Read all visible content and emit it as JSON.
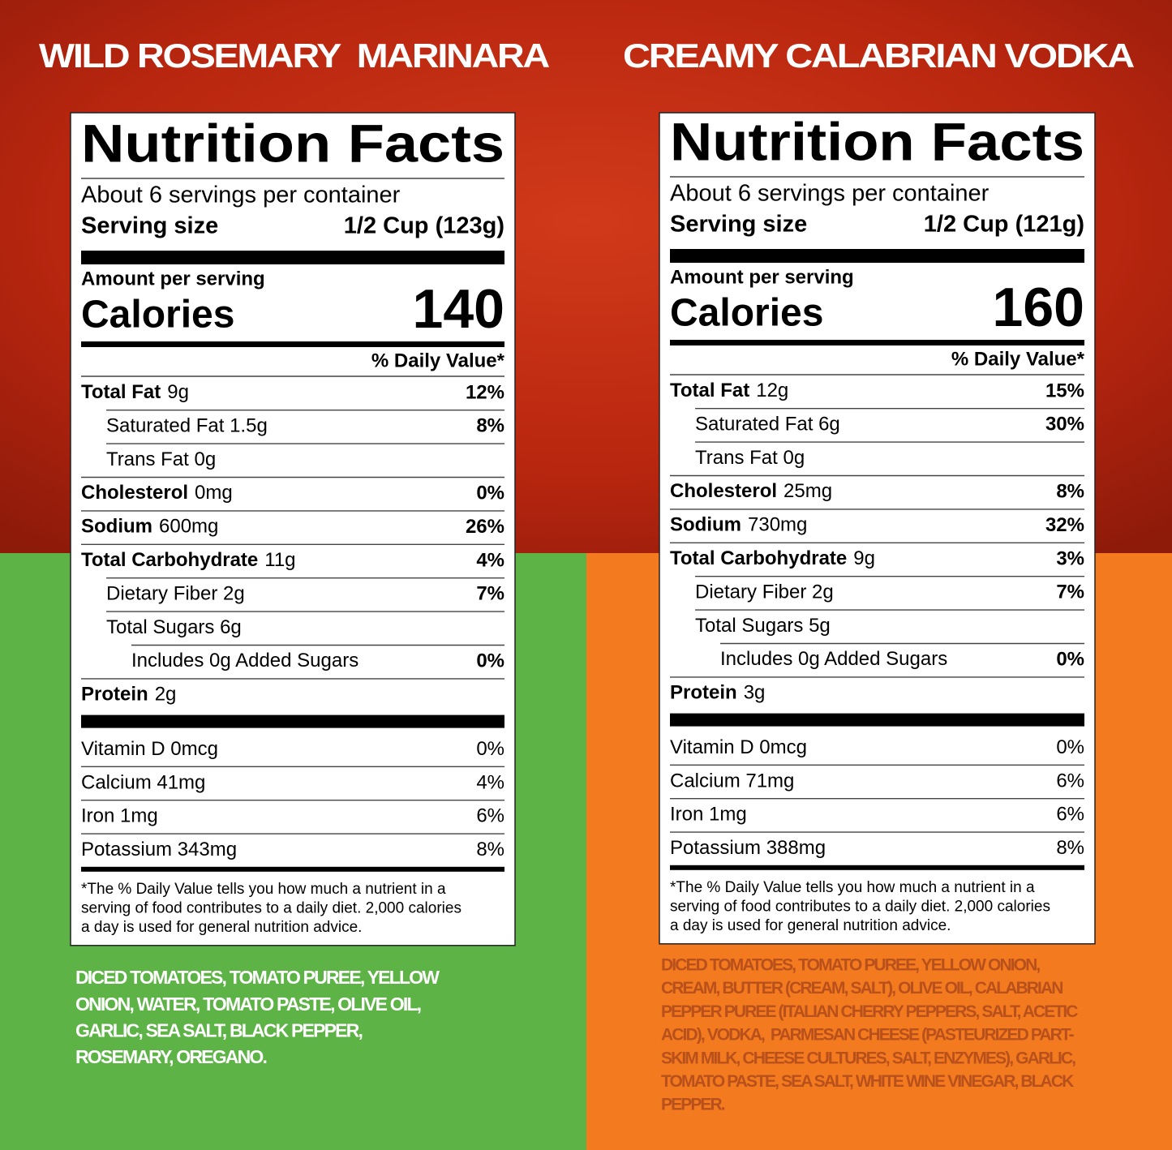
{
  "panels": [
    {
      "title": "WILD ROSEMARY  MARINARA",
      "label": {
        "heading": "Nutrition Facts",
        "servings": "About 6 servings per container",
        "serving_size_label": "Serving size",
        "serving_size": "1/2 Cup (123g)",
        "amount_label": "Amount per serving",
        "calories_label": "Calories",
        "calories": "140",
        "dv_header": "% Daily Value*",
        "nutrients": [
          {
            "name": "Total Fat",
            "amount": "9g",
            "dv": "12%",
            "sub": [
              {
                "name": "Saturated Fat 1.5g",
                "dv": "8%"
              },
              {
                "name": "Trans Fat 0g"
              }
            ]
          },
          {
            "name": "Cholesterol",
            "amount": "0mg",
            "dv": "0%"
          },
          {
            "name": "Sodium",
            "amount": "600mg",
            "dv": "26%"
          },
          {
            "name": "Total Carbohydrate",
            "amount": "11g",
            "dv": "4%",
            "sub": [
              {
                "name": "Dietary Fiber 2g",
                "dv": "7%"
              },
              {
                "name": "Total Sugars 6g",
                "sub": [
                  {
                    "name": "Includes 0g Added Sugars",
                    "dv": "0%"
                  }
                ]
              }
            ]
          },
          {
            "name": "Protein",
            "amount": "2g"
          }
        ],
        "vitamins": [
          {
            "name": "Vitamin D 0mcg",
            "dv": "0%"
          },
          {
            "name": "Calcium 41mg",
            "dv": "4%"
          },
          {
            "name": "Iron 1mg",
            "dv": "6%"
          },
          {
            "name": "Potassium 343mg",
            "dv": "8%"
          }
        ],
        "footnote": [
          "*The % Daily Value tells you how much a nutrient in a",
          "serving of food contributes to a daily diet. 2,000 calories",
          "a day is used for general nutrition advice."
        ]
      },
      "ingredients": [
        "DICED TOMATOES, TOMATO PUREE, YELLOW",
        "ONION, WATER, TOMATO PASTE, OLIVE OIL,",
        "GARLIC, SEA SALT, BLACK PEPPER,",
        "ROSEMARY, OREGANO."
      ]
    },
    {
      "title": "CREAMY CALABRIAN VODKA",
      "label": {
        "heading": "Nutrition Facts",
        "servings": "About 6 servings per container",
        "serving_size_label": "Serving size",
        "serving_size": "1/2 Cup (121g)",
        "amount_label": "Amount per serving",
        "calories_label": "Calories",
        "calories": "160",
        "dv_header": "% Daily Value*",
        "nutrients": [
          {
            "name": "Total Fat",
            "amount": "12g",
            "dv": "15%",
            "sub": [
              {
                "name": "Saturated Fat 6g",
                "dv": "30%"
              },
              {
                "name": "Trans Fat 0g"
              }
            ]
          },
          {
            "name": "Cholesterol",
            "amount": "25mg",
            "dv": "8%"
          },
          {
            "name": "Sodium",
            "amount": "730mg",
            "dv": "32%"
          },
          {
            "name": "Total Carbohydrate",
            "amount": "9g",
            "dv": "3%",
            "sub": [
              {
                "name": "Dietary Fiber 2g",
                "dv": "7%"
              },
              {
                "name": "Total Sugars 5g",
                "sub": [
                  {
                    "name": "Includes 0g Added Sugars",
                    "dv": "0%"
                  }
                ]
              }
            ]
          },
          {
            "name": "Protein",
            "amount": "3g"
          }
        ],
        "vitamins": [
          {
            "name": "Vitamin D 0mcg",
            "dv": "0%"
          },
          {
            "name": "Calcium 71mg",
            "dv": "6%"
          },
          {
            "name": "Iron 1mg",
            "dv": "6%"
          },
          {
            "name": "Potassium 388mg",
            "dv": "8%"
          }
        ],
        "footnote": [
          "*The % Daily Value tells you how much a nutrient in a",
          "serving of food contributes to a daily diet. 2,000 calories",
          "a day is used for general nutrition advice."
        ]
      },
      "ingredients": [
        "DICED TOMATOES, TOMATO PUREE, YELLOW ONION,",
        "CREAM, BUTTER (CREAM, SALT), OLIVE OIL, CALABRIAN",
        "PEPPER PUREE (ITALIAN CHERRY PEPPERS, SALT, ACETIC",
        "ACID), VODKA,  PARMESAN CHEESE (PASTEURIZED PART-",
        "SKIM MILK, CHEESE CULTURES, SALT, ENZYMES), GARLIC,",
        "TOMATO PASTE, SEA SALT, WHITE WINE VINEGAR, BLACK",
        "PEPPER."
      ]
    }
  ]
}
